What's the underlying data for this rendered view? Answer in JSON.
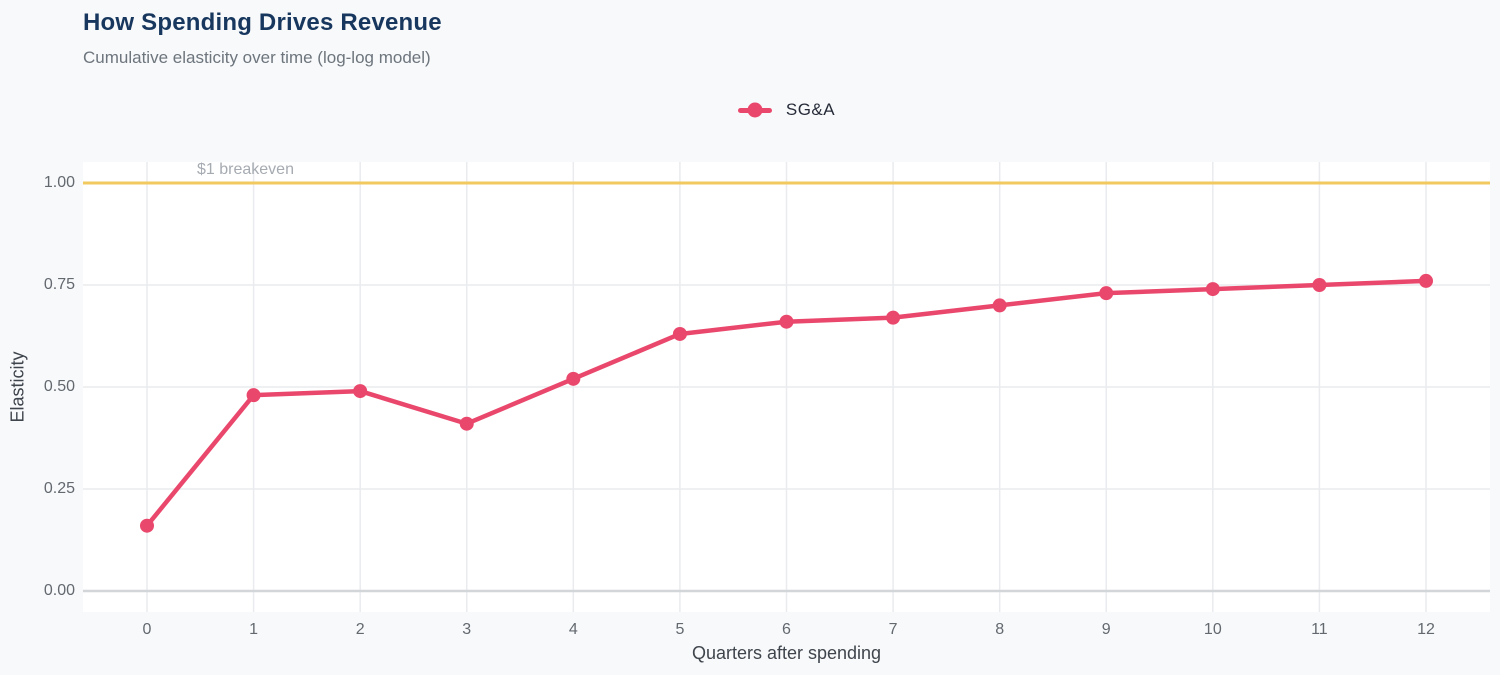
{
  "header": {
    "title": "How Spending Drives Revenue",
    "subtitle": "Cumulative elasticity over time (log-log model)"
  },
  "legend": {
    "position": "top-center",
    "items": [
      {
        "label": "SG&A",
        "color": "#ea476c",
        "marker": "line-with-dot"
      }
    ]
  },
  "chart_data": {
    "type": "line",
    "title": "How Spending Drives Revenue",
    "subtitle": "Cumulative elasticity over time (log-log model)",
    "xlabel": "Quarters after spending",
    "ylabel": "Elasticity",
    "x": [
      0,
      1,
      2,
      3,
      4,
      5,
      6,
      7,
      8,
      9,
      10,
      11,
      12
    ],
    "xtick_labels": [
      "0",
      "1",
      "2",
      "3",
      "4",
      "5",
      "6",
      "7",
      "8",
      "9",
      "10",
      "11",
      "12"
    ],
    "series": [
      {
        "name": "SG&A",
        "color": "#ea476c",
        "values": [
          0.16,
          0.48,
          0.49,
          0.41,
          0.52,
          0.63,
          0.66,
          0.67,
          0.7,
          0.73,
          0.74,
          0.75,
          0.76
        ]
      }
    ],
    "yticks": [
      0,
      0.25,
      0.5,
      0.75,
      1.0
    ],
    "ytick_labels": [
      "0.00",
      "0.25",
      "0.50",
      "0.75",
      "1.00"
    ],
    "ylim": [
      -0.05,
      1.05
    ],
    "grid": true,
    "legend_position": "top-center",
    "reference_line": {
      "y": 1.0,
      "label": "$1 breakeven",
      "color": "#f2c95f"
    }
  },
  "colors": {
    "page_background": "#f8f9fb",
    "plot_background": "#ffffff",
    "gridline": "#e9ebee",
    "zero_line": "#d3d6d9",
    "tick_text": "#63696f",
    "axis_title_text": "#3f454c",
    "title_text": "#17375e",
    "subtitle_text": "#6d757d",
    "series_pink": "#ea476c",
    "breakeven_yellow": "#f2c95f",
    "breakeven_label_text": "#a6abb2"
  }
}
